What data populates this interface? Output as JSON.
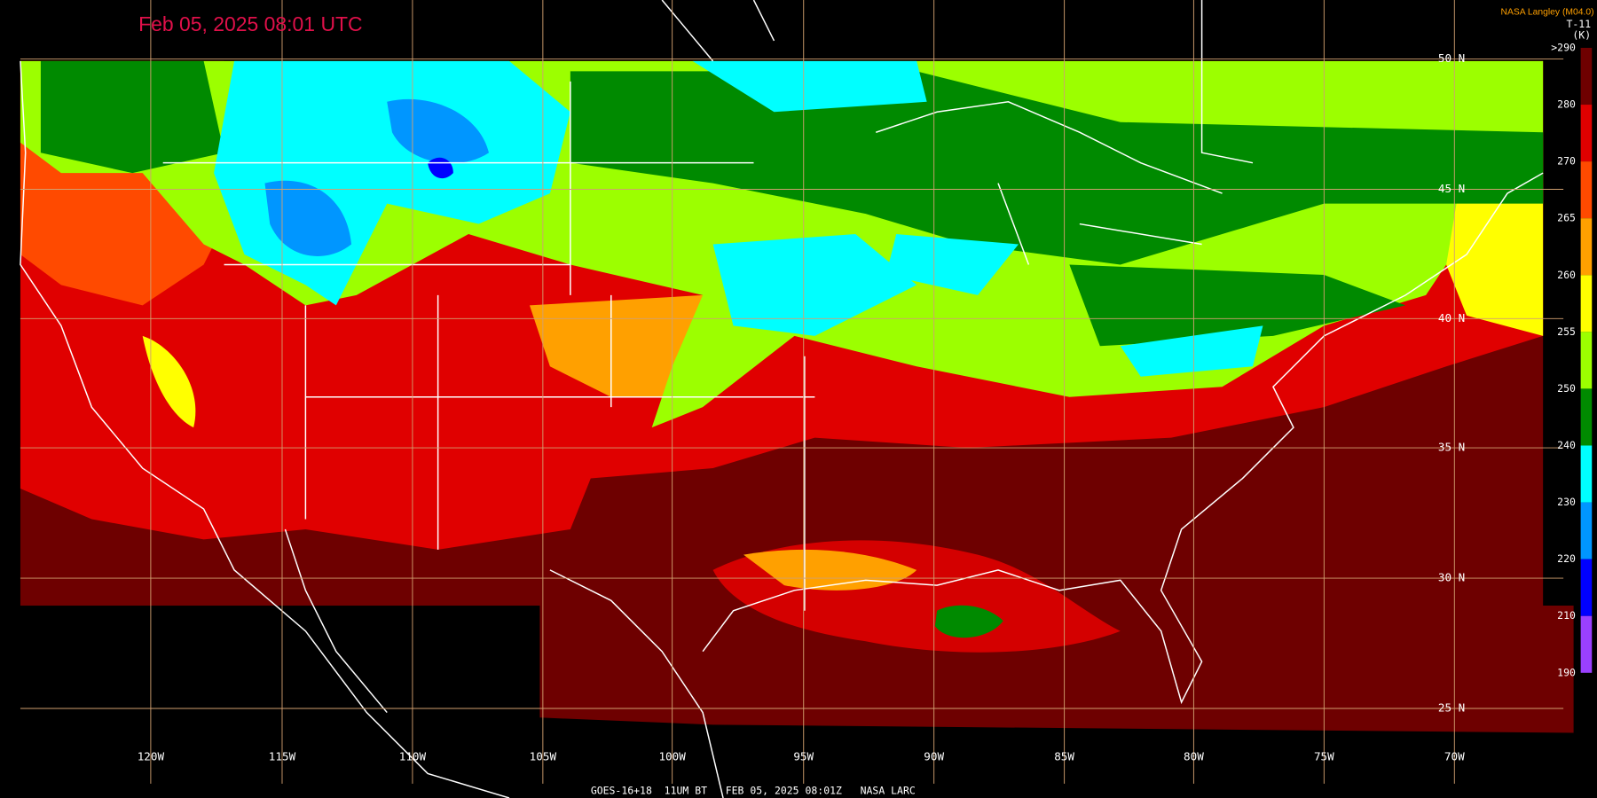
{
  "header": {
    "timestamp": "Feb 05, 2025 08:01 UTC",
    "source": "NASA Langley (M04.0)"
  },
  "colorbar": {
    "title": "T-11",
    "unit": "(K)",
    "labels": [
      ">290",
      "280",
      "270",
      "265",
      "260",
      "255",
      "250",
      "240",
      "230",
      "220",
      "210",
      "190"
    ],
    "colors": [
      "#6e0000",
      "#e00000",
      "#ff4a00",
      "#ffa000",
      "#ffff00",
      "#9cff00",
      "#008a00",
      "#00ffff",
      "#0096ff",
      "#0000ff",
      "#9a40ff"
    ]
  },
  "grid": {
    "latitudes": [
      "50 N",
      "45 N",
      "40 N",
      "35 N",
      "30 N",
      "25 N"
    ],
    "longitudes": [
      "120W",
      "115W",
      "110W",
      "105W",
      "100W",
      "95W",
      "90W",
      "85W",
      "80W",
      "75W",
      "70W"
    ]
  },
  "footer": "GOES-16+18  11UM BT   FEB 05, 2025 08:01Z   NASA LARC"
}
